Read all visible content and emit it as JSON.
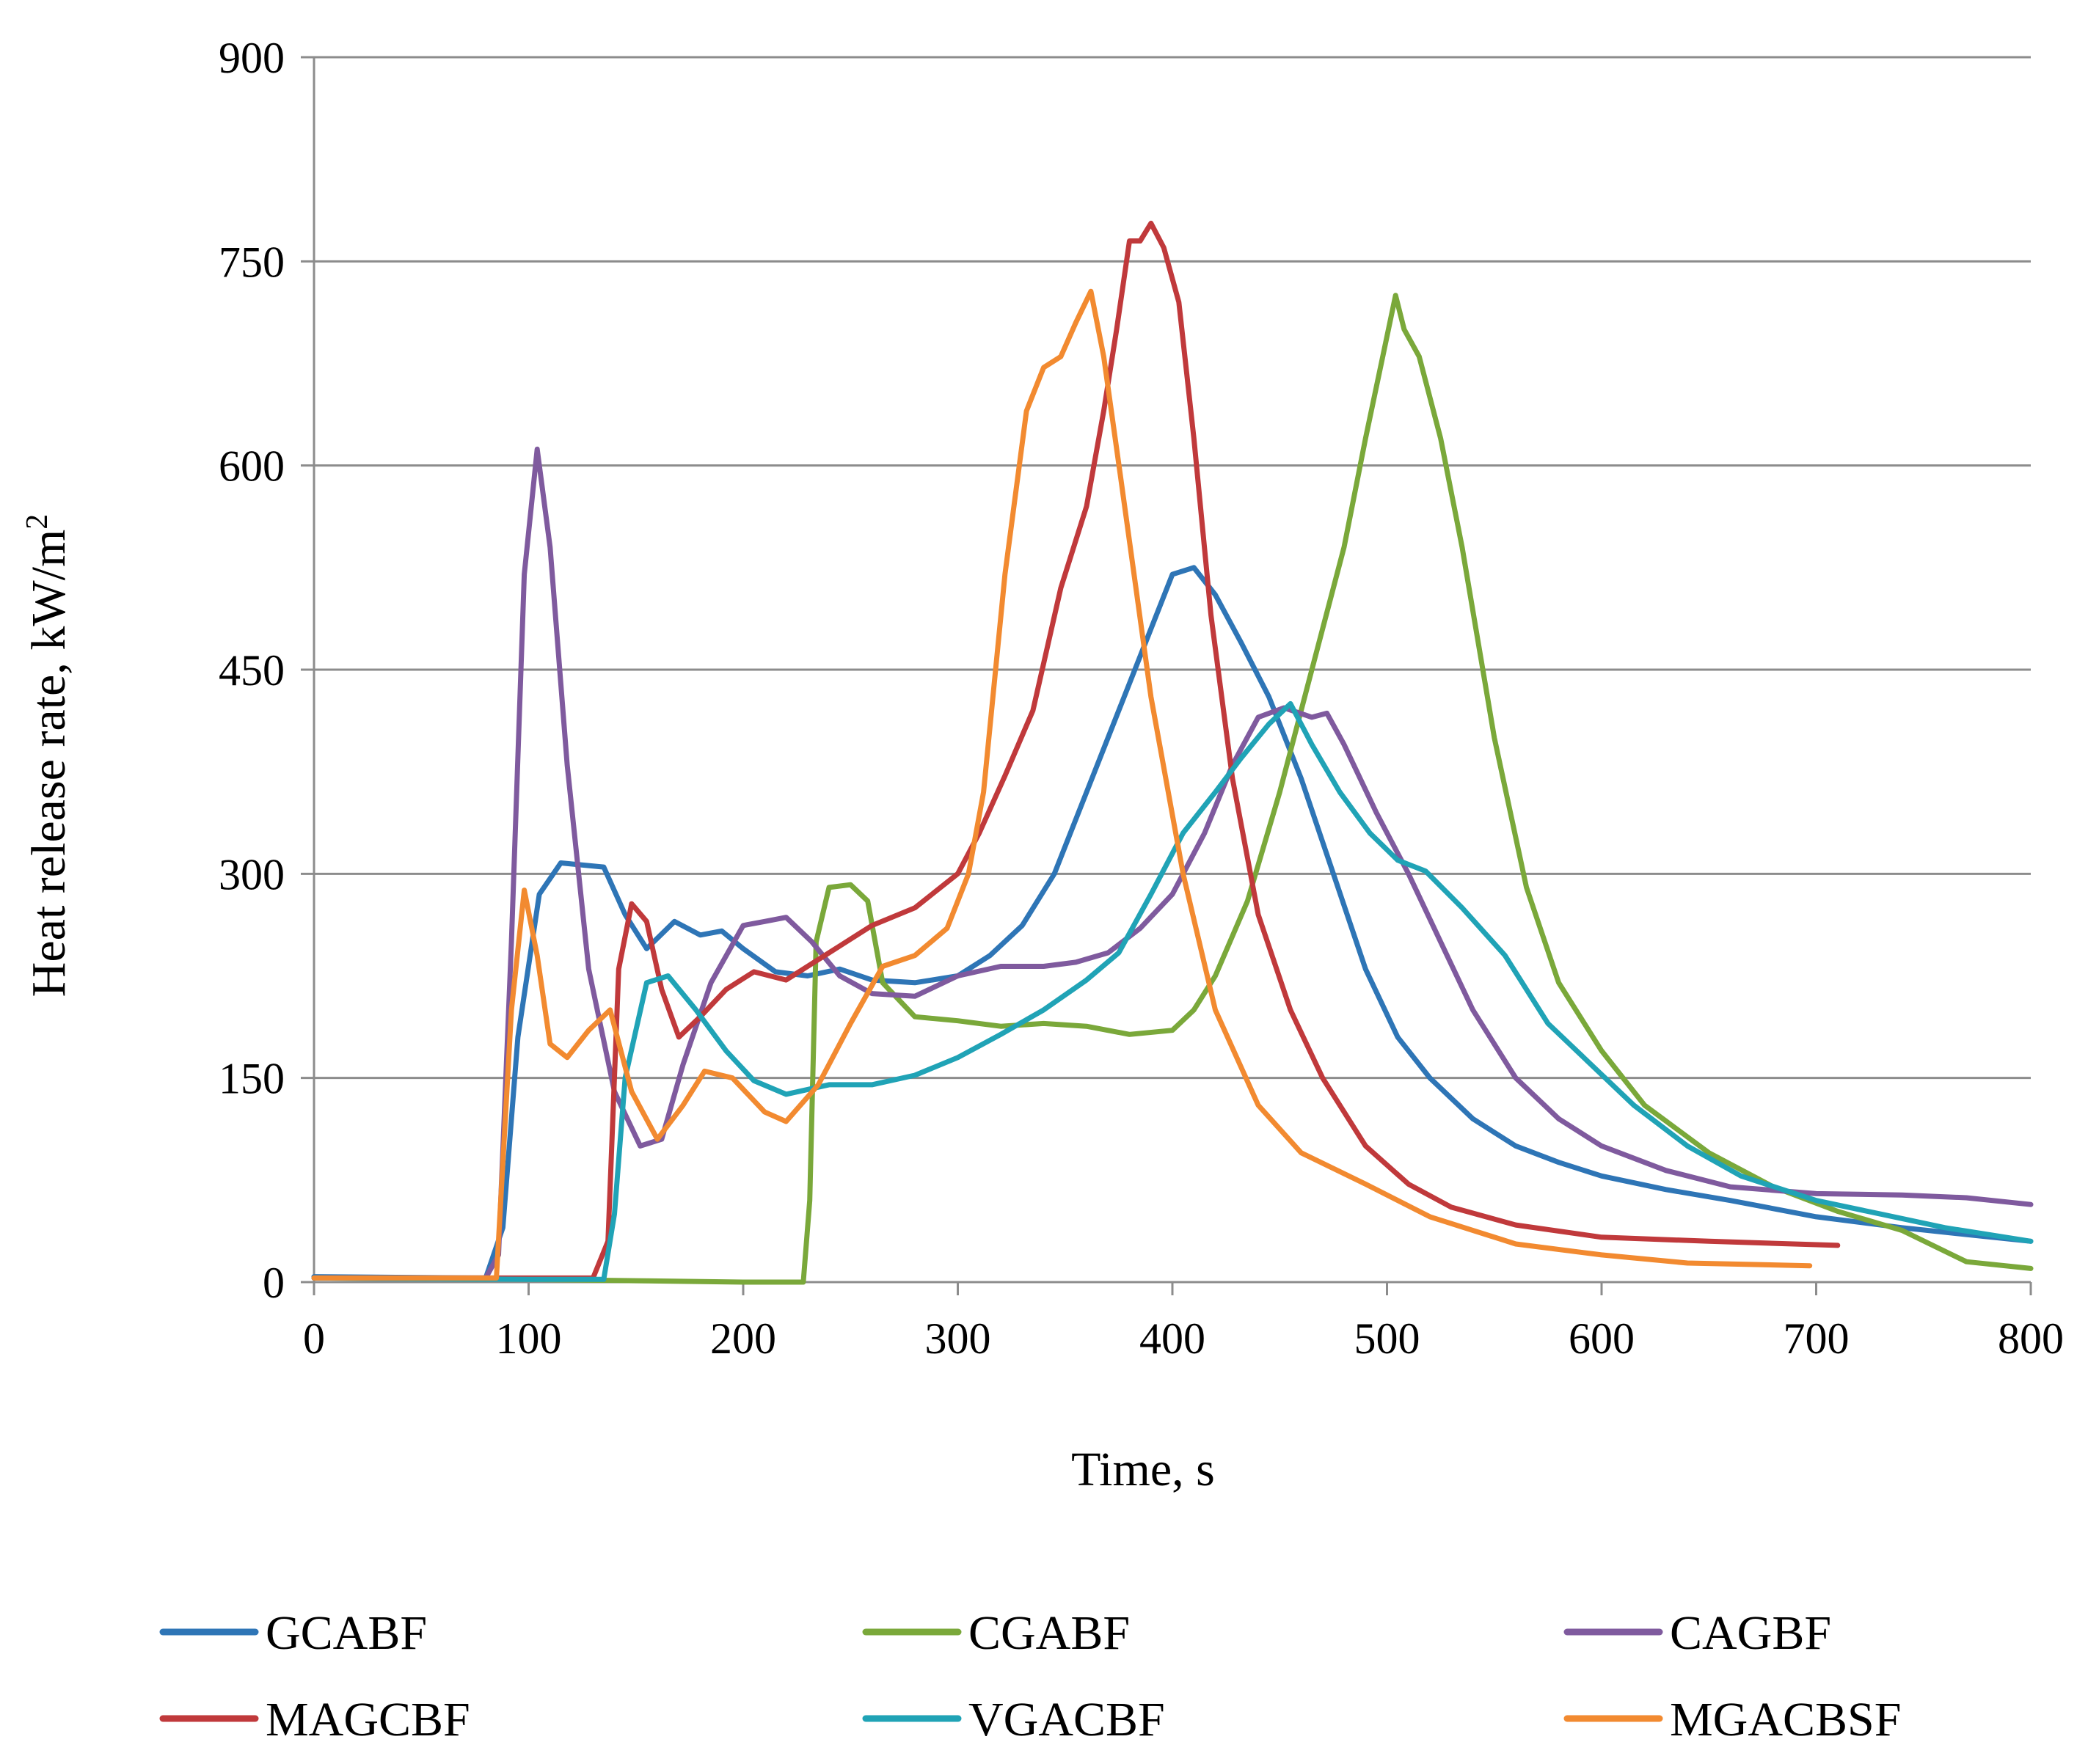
{
  "chart_data": {
    "type": "line",
    "title": "",
    "xlabel": "Time, s",
    "ylabel": "Heat release rate, kW/m",
    "ylabel_superscript": "2",
    "xlim": [
      0,
      800
    ],
    "ylim": [
      0,
      900
    ],
    "xticks": [
      0,
      100,
      200,
      300,
      400,
      500,
      600,
      700,
      800
    ],
    "yticks": [
      0,
      150,
      300,
      450,
      600,
      750,
      900
    ],
    "grid": "horizontal",
    "legend_position": "bottom",
    "series": [
      {
        "name": "GCABF",
        "color": "#2e75b6",
        "points": [
          [
            0,
            4
          ],
          [
            80,
            3
          ],
          [
            88,
            40
          ],
          [
            95,
            180
          ],
          [
            105,
            285
          ],
          [
            115,
            308
          ],
          [
            135,
            305
          ],
          [
            145,
            270
          ],
          [
            155,
            245
          ],
          [
            168,
            265
          ],
          [
            180,
            255
          ],
          [
            190,
            258
          ],
          [
            200,
            245
          ],
          [
            215,
            228
          ],
          [
            230,
            225
          ],
          [
            245,
            230
          ],
          [
            260,
            222
          ],
          [
            280,
            220
          ],
          [
            300,
            225
          ],
          [
            315,
            240
          ],
          [
            330,
            262
          ],
          [
            345,
            300
          ],
          [
            360,
            360
          ],
          [
            375,
            420
          ],
          [
            390,
            480
          ],
          [
            400,
            520
          ],
          [
            410,
            525
          ],
          [
            420,
            505
          ],
          [
            432,
            470
          ],
          [
            445,
            430
          ],
          [
            460,
            370
          ],
          [
            475,
            300
          ],
          [
            490,
            230
          ],
          [
            505,
            180
          ],
          [
            520,
            150
          ],
          [
            540,
            120
          ],
          [
            560,
            100
          ],
          [
            580,
            88
          ],
          [
            600,
            78
          ],
          [
            630,
            68
          ],
          [
            660,
            60
          ],
          [
            700,
            48
          ],
          [
            740,
            40
          ],
          [
            770,
            35
          ],
          [
            800,
            30
          ]
        ]
      },
      {
        "name": "CGABF",
        "color": "#7aa83a",
        "points": [
          [
            0,
            3
          ],
          [
            100,
            2
          ],
          [
            150,
            1
          ],
          [
            200,
            0
          ],
          [
            228,
            0
          ],
          [
            231,
            60
          ],
          [
            234,
            250
          ],
          [
            240,
            290
          ],
          [
            250,
            292
          ],
          [
            258,
            280
          ],
          [
            265,
            220
          ],
          [
            280,
            195
          ],
          [
            300,
            192
          ],
          [
            320,
            188
          ],
          [
            340,
            190
          ],
          [
            360,
            188
          ],
          [
            380,
            182
          ],
          [
            400,
            185
          ],
          [
            410,
            200
          ],
          [
            420,
            225
          ],
          [
            435,
            280
          ],
          [
            450,
            360
          ],
          [
            465,
            450
          ],
          [
            480,
            540
          ],
          [
            490,
            620
          ],
          [
            498,
            680
          ],
          [
            504,
            725
          ],
          [
            508,
            700
          ],
          [
            515,
            680
          ],
          [
            525,
            620
          ],
          [
            535,
            540
          ],
          [
            550,
            400
          ],
          [
            565,
            290
          ],
          [
            580,
            220
          ],
          [
            600,
            170
          ],
          [
            620,
            130
          ],
          [
            650,
            95
          ],
          [
            680,
            70
          ],
          [
            710,
            52
          ],
          [
            740,
            38
          ],
          [
            770,
            15
          ],
          [
            800,
            10
          ]
        ]
      },
      {
        "name": "CAGBF",
        "color": "#7f5a9e",
        "points": [
          [
            0,
            3
          ],
          [
            80,
            3
          ],
          [
            86,
            20
          ],
          [
            92,
            250
          ],
          [
            98,
            520
          ],
          [
            104,
            612
          ],
          [
            110,
            540
          ],
          [
            118,
            380
          ],
          [
            128,
            230
          ],
          [
            140,
            140
          ],
          [
            152,
            100
          ],
          [
            162,
            105
          ],
          [
            172,
            160
          ],
          [
            185,
            220
          ],
          [
            200,
            262
          ],
          [
            210,
            265
          ],
          [
            220,
            268
          ],
          [
            232,
            250
          ],
          [
            245,
            225
          ],
          [
            260,
            212
          ],
          [
            280,
            210
          ],
          [
            300,
            225
          ],
          [
            320,
            232
          ],
          [
            340,
            232
          ],
          [
            355,
            235
          ],
          [
            370,
            242
          ],
          [
            385,
            260
          ],
          [
            400,
            285
          ],
          [
            415,
            330
          ],
          [
            428,
            380
          ],
          [
            440,
            415
          ],
          [
            452,
            422
          ],
          [
            465,
            415
          ],
          [
            472,
            418
          ],
          [
            480,
            395
          ],
          [
            495,
            345
          ],
          [
            510,
            300
          ],
          [
            525,
            250
          ],
          [
            540,
            200
          ],
          [
            560,
            150
          ],
          [
            580,
            120
          ],
          [
            600,
            100
          ],
          [
            630,
            82
          ],
          [
            660,
            70
          ],
          [
            700,
            65
          ],
          [
            740,
            64
          ],
          [
            770,
            62
          ],
          [
            800,
            57
          ]
        ]
      },
      {
        "name": "MAGCBF",
        "color": "#c0393b",
        "points": [
          [
            0,
            3
          ],
          [
            130,
            3
          ],
          [
            137,
            30
          ],
          [
            142,
            230
          ],
          [
            148,
            278
          ],
          [
            155,
            265
          ],
          [
            162,
            215
          ],
          [
            170,
            180
          ],
          [
            180,
            195
          ],
          [
            192,
            215
          ],
          [
            205,
            228
          ],
          [
            220,
            222
          ],
          [
            240,
            242
          ],
          [
            260,
            262
          ],
          [
            280,
            275
          ],
          [
            300,
            300
          ],
          [
            310,
            330
          ],
          [
            322,
            372
          ],
          [
            335,
            420
          ],
          [
            348,
            510
          ],
          [
            360,
            570
          ],
          [
            368,
            640
          ],
          [
            374,
            700
          ],
          [
            380,
            765
          ],
          [
            385,
            765
          ],
          [
            390,
            778
          ],
          [
            396,
            760
          ],
          [
            403,
            720
          ],
          [
            410,
            620
          ],
          [
            418,
            490
          ],
          [
            428,
            370
          ],
          [
            440,
            270
          ],
          [
            455,
            200
          ],
          [
            470,
            150
          ],
          [
            490,
            100
          ],
          [
            510,
            72
          ],
          [
            530,
            55
          ],
          [
            560,
            42
          ],
          [
            600,
            33
          ],
          [
            650,
            30
          ],
          [
            710,
            27
          ]
        ]
      },
      {
        "name": "VGACBF",
        "color": "#20a3b6",
        "points": [
          [
            0,
            3
          ],
          [
            100,
            2
          ],
          [
            135,
            2
          ],
          [
            140,
            50
          ],
          [
            145,
            150
          ],
          [
            155,
            220
          ],
          [
            165,
            225
          ],
          [
            178,
            200
          ],
          [
            192,
            170
          ],
          [
            205,
            148
          ],
          [
            220,
            138
          ],
          [
            240,
            145
          ],
          [
            260,
            145
          ],
          [
            280,
            152
          ],
          [
            300,
            165
          ],
          [
            320,
            182
          ],
          [
            340,
            200
          ],
          [
            360,
            222
          ],
          [
            375,
            242
          ],
          [
            390,
            285
          ],
          [
            405,
            330
          ],
          [
            420,
            360
          ],
          [
            432,
            385
          ],
          [
            445,
            410
          ],
          [
            455,
            425
          ],
          [
            465,
            395
          ],
          [
            478,
            360
          ],
          [
            492,
            330
          ],
          [
            505,
            310
          ],
          [
            518,
            302
          ],
          [
            535,
            275
          ],
          [
            555,
            240
          ],
          [
            575,
            190
          ],
          [
            595,
            160
          ],
          [
            615,
            130
          ],
          [
            640,
            100
          ],
          [
            665,
            78
          ],
          [
            700,
            60
          ],
          [
            730,
            50
          ],
          [
            760,
            40
          ],
          [
            800,
            30
          ]
        ]
      },
      {
        "name": "MGACBSF",
        "color": "#f28a30",
        "points": [
          [
            0,
            3
          ],
          [
            85,
            3
          ],
          [
            92,
            200
          ],
          [
            98,
            288
          ],
          [
            104,
            240
          ],
          [
            110,
            175
          ],
          [
            118,
            165
          ],
          [
            128,
            185
          ],
          [
            138,
            200
          ],
          [
            148,
            140
          ],
          [
            160,
            105
          ],
          [
            172,
            130
          ],
          [
            182,
            155
          ],
          [
            195,
            150
          ],
          [
            210,
            125
          ],
          [
            220,
            118
          ],
          [
            235,
            145
          ],
          [
            250,
            190
          ],
          [
            265,
            232
          ],
          [
            280,
            240
          ],
          [
            295,
            260
          ],
          [
            305,
            300
          ],
          [
            312,
            360
          ],
          [
            322,
            520
          ],
          [
            332,
            640
          ],
          [
            340,
            672
          ],
          [
            348,
            680
          ],
          [
            355,
            705
          ],
          [
            362,
            728
          ],
          [
            368,
            680
          ],
          [
            376,
            590
          ],
          [
            390,
            430
          ],
          [
            405,
            300
          ],
          [
            420,
            200
          ],
          [
            440,
            130
          ],
          [
            460,
            95
          ],
          [
            490,
            72
          ],
          [
            520,
            48
          ],
          [
            560,
            28
          ],
          [
            600,
            20
          ],
          [
            640,
            14
          ],
          [
            697,
            12
          ]
        ]
      }
    ]
  }
}
